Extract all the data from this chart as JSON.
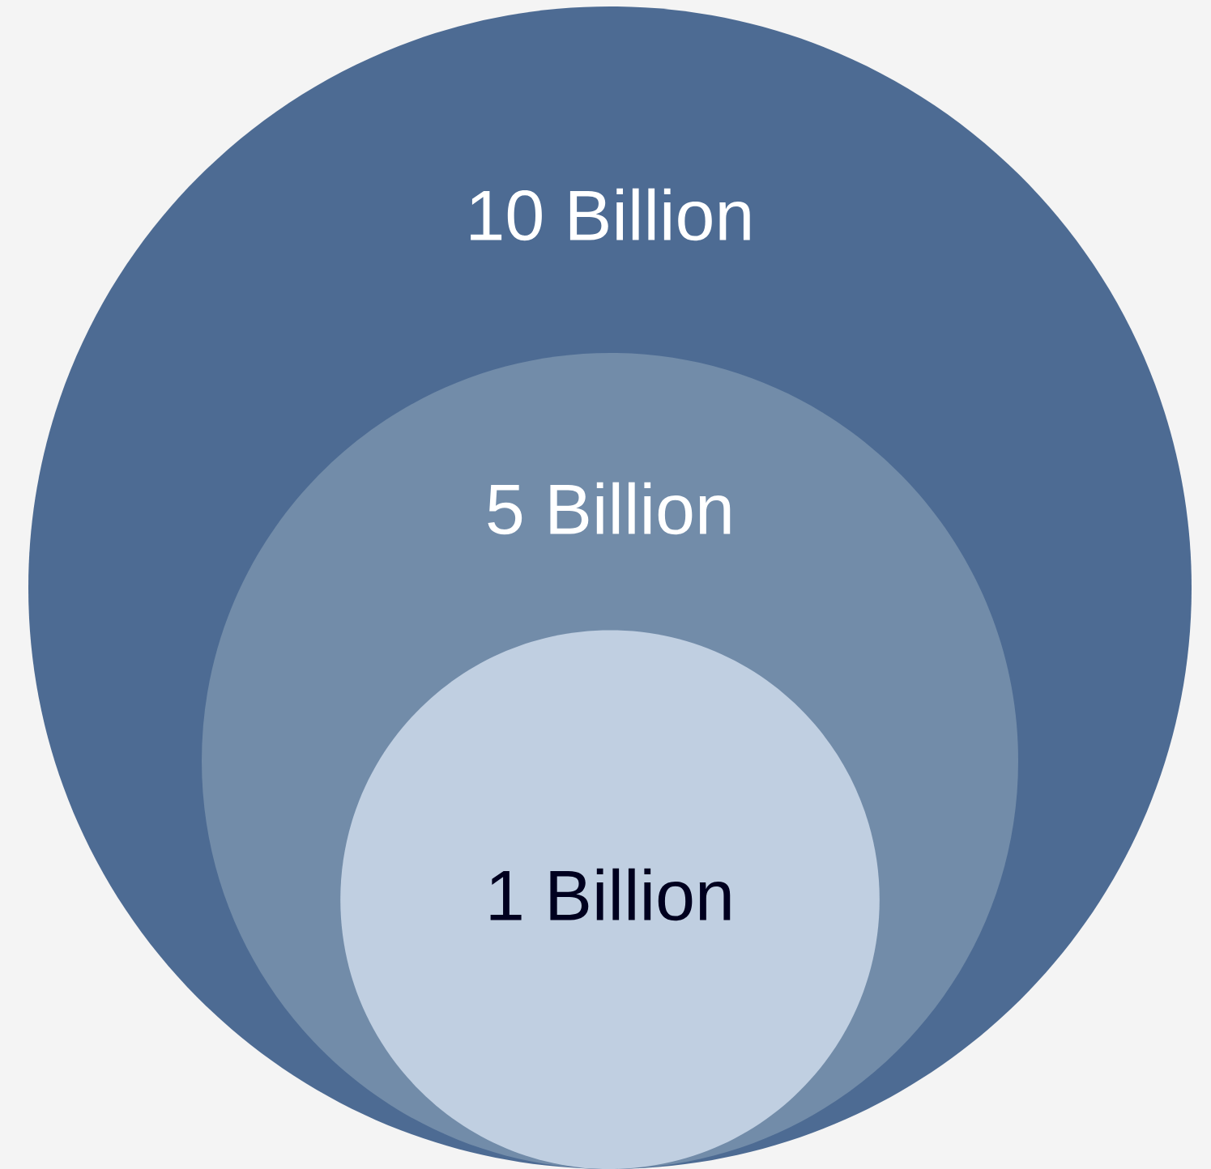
{
  "chart_data": {
    "type": "other",
    "categories": [
      null,
      null,
      null
    ],
    "values": [
      10,
      5,
      1
    ],
    "value_labels": [
      "10 Billion",
      "5 Billion",
      "1 Billion"
    ],
    "colors": [
      "#4d6b93",
      "#728ca9",
      "#c0cfe1"
    ]
  }
}
